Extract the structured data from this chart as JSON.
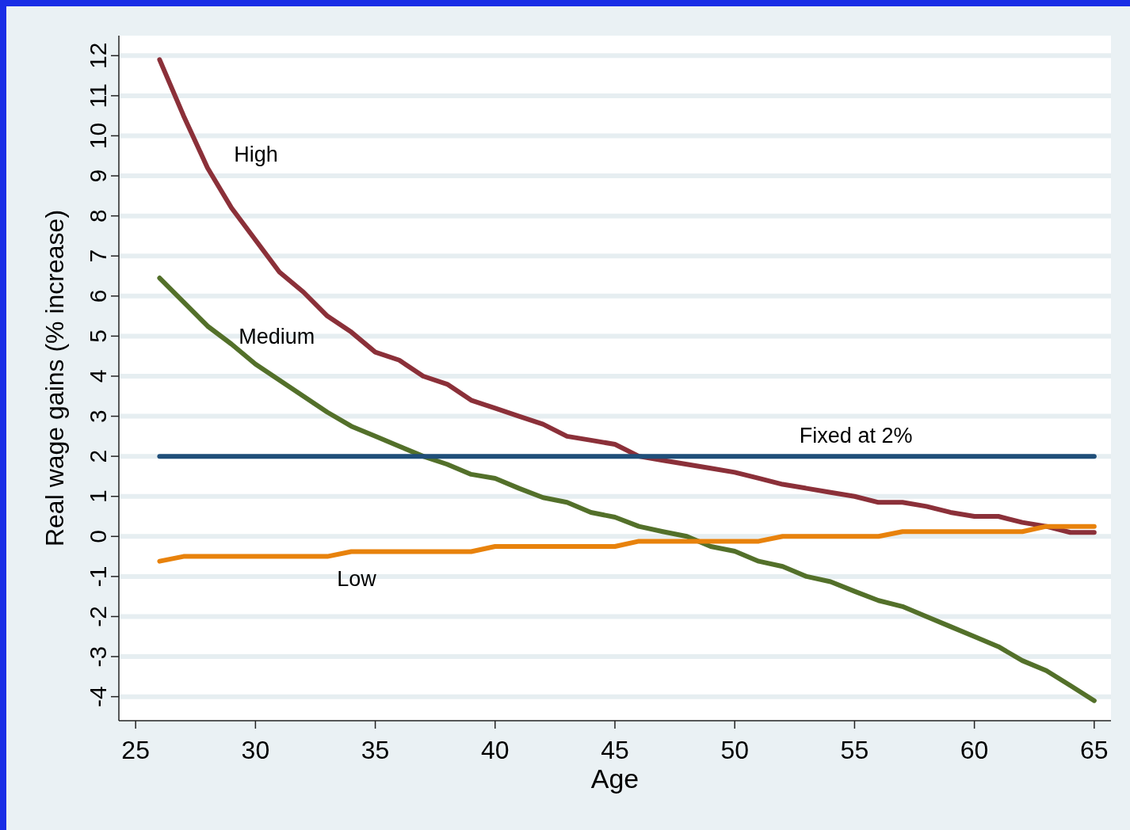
{
  "chart_data": {
    "type": "line",
    "xlabel": "Age",
    "ylabel": "Real wage gains (% increase)",
    "x": [
      26,
      27,
      28,
      29,
      30,
      31,
      32,
      33,
      34,
      35,
      36,
      37,
      38,
      39,
      40,
      41,
      42,
      43,
      44,
      45,
      46,
      47,
      48,
      49,
      50,
      51,
      52,
      53,
      54,
      55,
      56,
      57,
      58,
      59,
      60,
      61,
      62,
      63,
      64,
      65
    ],
    "xlim": [
      24.3,
      65.7
    ],
    "xticks": [
      25,
      30,
      35,
      40,
      45,
      50,
      55,
      60,
      65
    ],
    "ylim": [
      -4.6,
      12.5
    ],
    "yticks": [
      -4,
      -3,
      -2,
      -1,
      0,
      1,
      2,
      3,
      4,
      5,
      6,
      7,
      8,
      9,
      10,
      11,
      12
    ],
    "grid": "y",
    "marker": "none",
    "line_style": "solid",
    "series": [
      {
        "name": "High",
        "color": "#8b3039",
        "values": [
          11.9,
          10.5,
          9.2,
          8.2,
          7.4,
          6.6,
          6.1,
          5.5,
          5.1,
          4.6,
          4.4,
          4.0,
          3.8,
          3.4,
          3.2,
          3.0,
          2.8,
          2.5,
          2.4,
          2.3,
          2.0,
          1.9,
          1.8,
          1.7,
          1.6,
          1.45,
          1.3,
          1.2,
          1.1,
          1.0,
          0.85,
          0.85,
          0.75,
          0.6,
          0.5,
          0.5,
          0.35,
          0.25,
          0.1,
          0.1
        ]
      },
      {
        "name": "Medium",
        "color": "#53702a",
        "values": [
          6.45,
          5.85,
          5.25,
          4.8,
          4.3,
          3.9,
          3.5,
          3.1,
          2.75,
          2.5,
          2.25,
          2.0,
          1.8,
          1.55,
          1.45,
          1.2,
          0.97,
          0.85,
          0.6,
          0.48,
          0.25,
          0.12,
          0.0,
          -0.25,
          -0.37,
          -0.62,
          -0.75,
          -1.0,
          -1.13,
          -1.37,
          -1.6,
          -1.75,
          -2.0,
          -2.25,
          -2.5,
          -2.75,
          -3.1,
          -3.35,
          -3.72,
          -4.1
        ]
      },
      {
        "name": "Low",
        "color": "#e8820c",
        "values": [
          -0.62,
          -0.5,
          -0.5,
          -0.5,
          -0.5,
          -0.5,
          -0.5,
          -0.5,
          -0.38,
          -0.38,
          -0.38,
          -0.38,
          -0.38,
          -0.38,
          -0.25,
          -0.25,
          -0.25,
          -0.25,
          -0.25,
          -0.25,
          -0.12,
          -0.12,
          -0.12,
          -0.12,
          -0.12,
          -0.12,
          0,
          0,
          0,
          0,
          0,
          0.12,
          0.12,
          0.12,
          0.12,
          0.12,
          0.12,
          0.25,
          0.25,
          0.25
        ]
      },
      {
        "name": "Fixed at 2%",
        "color": "#1f4e79",
        "values": [
          2,
          2,
          2,
          2,
          2,
          2,
          2,
          2,
          2,
          2,
          2,
          2,
          2,
          2,
          2,
          2,
          2,
          2,
          2,
          2,
          2,
          2,
          2,
          2,
          2,
          2,
          2,
          2,
          2,
          2,
          2,
          2,
          2,
          2,
          2,
          2,
          2,
          2,
          2,
          2
        ]
      }
    ]
  }
}
